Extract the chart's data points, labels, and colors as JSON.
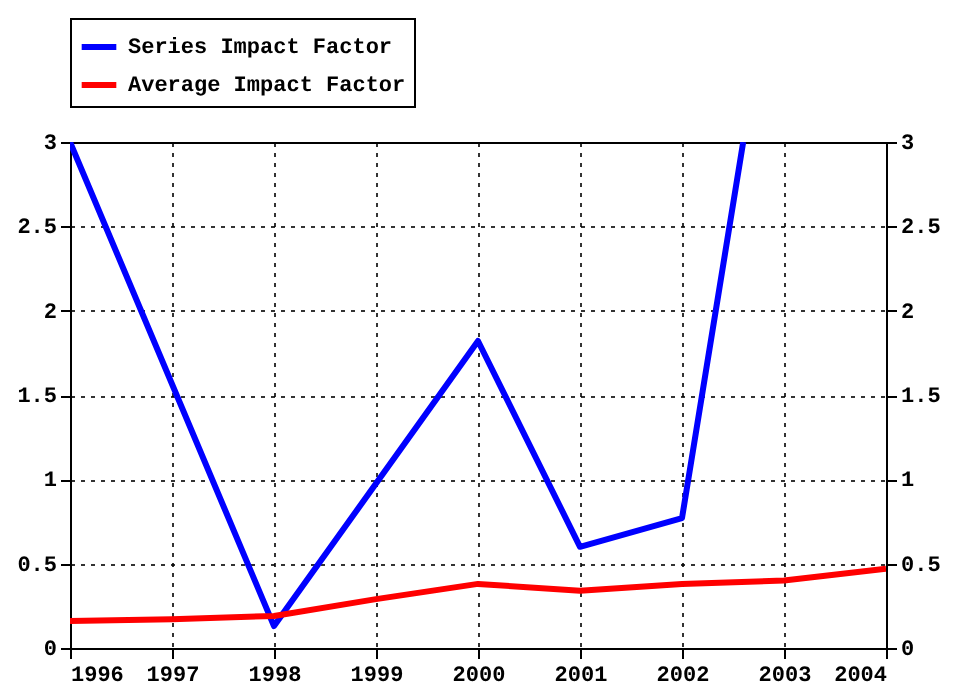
{
  "chart_data": {
    "type": "line",
    "xlim": [
      1996,
      2004
    ],
    "xticks": [
      1996,
      1997,
      1998,
      1999,
      2000,
      2001,
      2002,
      2003,
      2004
    ],
    "ylim": [
      0,
      3
    ],
    "yticks": [
      0,
      0.5,
      1,
      1.5,
      2,
      2.5,
      3
    ],
    "y2lim": [
      0,
      3
    ],
    "y2ticks": [
      0,
      0.5,
      1,
      1.5,
      2,
      2.5,
      3
    ],
    "grid": true,
    "legend": "top",
    "series": [
      {
        "name": "Series Impact Factor",
        "color": "#0000ff",
        "x": [
          1996,
          1998,
          2000,
          2001,
          2002,
          2002.6
        ],
        "values": [
          3,
          0.13,
          1.82,
          0.6,
          0.77,
          3
        ]
      },
      {
        "name": "Average Impact Factor",
        "color": "#ff0000",
        "x": [
          1996,
          1997,
          1998,
          1999,
          2000,
          2001,
          2002,
          2003,
          2004
        ],
        "values": [
          0.16,
          0.17,
          0.19,
          0.29,
          0.38,
          0.34,
          0.38,
          0.4,
          0.47
        ]
      }
    ]
  }
}
